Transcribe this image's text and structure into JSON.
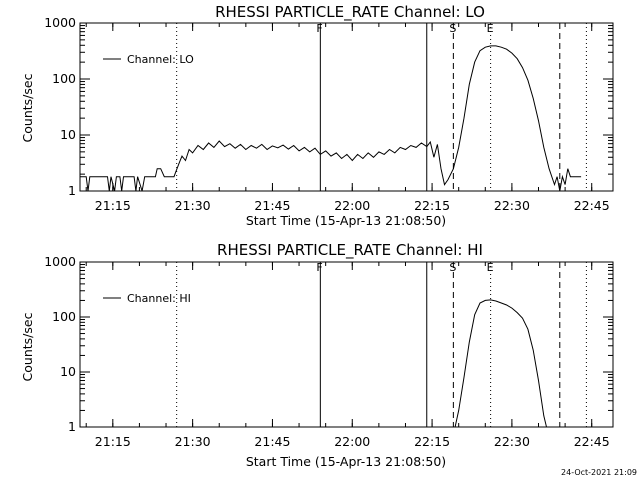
{
  "footer_timestamp": "24-Oct-2021 21:09",
  "chart_data": [
    {
      "type": "line",
      "title": "RHESSI PARTICLE_RATE Channel: LO",
      "xlabel": "Start Time (15-Apr-13 21:08:50)",
      "ylabel": "Counts/sec",
      "y_scale": "log",
      "ylim": [
        1,
        1000
      ],
      "xlim": [
        "21:08:50",
        "22:49:00"
      ],
      "x_ticks": [
        "21:15",
        "21:30",
        "21:45",
        "22:00",
        "22:15",
        "22:30",
        "22:45"
      ],
      "y_ticks": [
        "1",
        "10",
        "100",
        "1000"
      ],
      "grid": false,
      "legend": {
        "position": "top-left",
        "entries": [
          "Channel: LO"
        ]
      },
      "markers": [
        {
          "time": "21:27",
          "style": "dotted",
          "label": ""
        },
        {
          "time": "21:54",
          "style": "solid",
          "label": "F"
        },
        {
          "time": "22:14",
          "style": "solid",
          "label": ""
        },
        {
          "time": "22:19",
          "style": "dashed",
          "label": "S"
        },
        {
          "time": "22:26",
          "style": "dotted",
          "label": "E"
        },
        {
          "time": "22:39",
          "style": "dashed",
          "label": ""
        },
        {
          "time": "22:44",
          "style": "dotted",
          "label": ""
        }
      ],
      "series": [
        {
          "name": "Channel: LO",
          "points": [
            [
              "21:08:50",
              1.8
            ],
            [
              "21:10",
              1.8
            ],
            [
              "21:10:20",
              0.9
            ],
            [
              "21:10:40",
              1.8
            ],
            [
              "21:14",
              1.8
            ],
            [
              "21:14:20",
              0.9
            ],
            [
              "21:14:40",
              1.8
            ],
            [
              "21:15:20",
              0.9
            ],
            [
              "21:15:40",
              1.8
            ],
            [
              "21:16:20",
              1.8
            ],
            [
              "21:16:40",
              0.9
            ],
            [
              "21:17",
              1.8
            ],
            [
              "21:19",
              1.8
            ],
            [
              "21:19:20",
              0.9
            ],
            [
              "21:19:40",
              1.8
            ],
            [
              "21:20:30",
              0.9
            ],
            [
              "21:21",
              1.8
            ],
            [
              "21:23",
              1.8
            ],
            [
              "21:23:20",
              2.5
            ],
            [
              "21:24",
              2.5
            ],
            [
              "21:24:40",
              1.8
            ],
            [
              "21:26:30",
              1.8
            ],
            [
              "21:26:50",
              2.2
            ],
            [
              "21:27:30",
              3.2
            ],
            [
              "21:28",
              4.2
            ],
            [
              "21:28:40",
              3.5
            ],
            [
              "21:29:20",
              5.5
            ],
            [
              "21:30",
              4.8
            ],
            [
              "21:31",
              6.5
            ],
            [
              "21:32",
              5.5
            ],
            [
              "21:33",
              7.2
            ],
            [
              "21:34",
              6.0
            ],
            [
              "21:35",
              7.8
            ],
            [
              "21:36",
              6.2
            ],
            [
              "21:37",
              7.0
            ],
            [
              "21:38",
              5.8
            ],
            [
              "21:39",
              6.8
            ],
            [
              "21:40",
              5.5
            ],
            [
              "21:41",
              6.5
            ],
            [
              "21:42",
              5.8
            ],
            [
              "21:43",
              6.8
            ],
            [
              "21:44",
              5.5
            ],
            [
              "21:45",
              6.4
            ],
            [
              "21:46",
              5.9
            ],
            [
              "21:47",
              6.6
            ],
            [
              "21:48",
              5.6
            ],
            [
              "21:49",
              6.5
            ],
            [
              "21:50",
              5.2
            ],
            [
              "21:51",
              6.0
            ],
            [
              "21:52",
              5.0
            ],
            [
              "21:53",
              5.8
            ],
            [
              "21:54",
              4.5
            ],
            [
              "21:55",
              5.2
            ],
            [
              "21:56",
              4.2
            ],
            [
              "21:57",
              4.8
            ],
            [
              "21:58",
              3.8
            ],
            [
              "21:59",
              4.5
            ],
            [
              "22:00",
              3.5
            ],
            [
              "22:01",
              4.5
            ],
            [
              "22:02",
              3.8
            ],
            [
              "22:03",
              4.8
            ],
            [
              "22:04",
              4.0
            ],
            [
              "22:05",
              5.0
            ],
            [
              "22:06",
              4.5
            ],
            [
              "22:07",
              5.5
            ],
            [
              "22:08",
              4.8
            ],
            [
              "22:09",
              6.0
            ],
            [
              "22:10",
              5.5
            ],
            [
              "22:11",
              6.5
            ],
            [
              "22:12",
              6.0
            ],
            [
              "22:13",
              7.2
            ],
            [
              "22:14",
              6.2
            ],
            [
              "22:14:40",
              7.5
            ],
            [
              "22:15:20",
              4.0
            ],
            [
              "22:16",
              6.8
            ],
            [
              "22:16:40",
              2.5
            ],
            [
              "22:17:20",
              1.3
            ],
            [
              "22:18",
              1.6
            ],
            [
              "22:19",
              2.5
            ],
            [
              "22:20",
              6.0
            ],
            [
              "22:21",
              20
            ],
            [
              "22:22",
              80
            ],
            [
              "22:23",
              200
            ],
            [
              "22:24",
              320
            ],
            [
              "22:25",
              370
            ],
            [
              "22:26",
              390
            ],
            [
              "22:27",
              390
            ],
            [
              "22:28",
              370
            ],
            [
              "22:29",
              340
            ],
            [
              "22:30",
              290
            ],
            [
              "22:31",
              230
            ],
            [
              "22:32",
              160
            ],
            [
              "22:33",
              95
            ],
            [
              "22:34",
              45
            ],
            [
              "22:35",
              18
            ],
            [
              "22:36",
              6
            ],
            [
              "22:37",
              2.5
            ],
            [
              "22:38",
              1.3
            ],
            [
              "22:38:30",
              1.8
            ],
            [
              "22:39",
              0.9
            ],
            [
              "22:39:30",
              1.8
            ],
            [
              "22:40",
              1.3
            ],
            [
              "22:40:30",
              2.5
            ],
            [
              "22:41",
              1.8
            ],
            [
              "22:43",
              1.8
            ]
          ]
        }
      ]
    },
    {
      "type": "line",
      "title": "RHESSI PARTICLE_RATE Channel: HI",
      "xlabel": "Start Time (15-Apr-13 21:08:50)",
      "ylabel": "Counts/sec",
      "y_scale": "log",
      "ylim": [
        1,
        1000
      ],
      "xlim": [
        "21:08:50",
        "22:49:00"
      ],
      "x_ticks": [
        "21:15",
        "21:30",
        "21:45",
        "22:00",
        "22:15",
        "22:30",
        "22:45"
      ],
      "y_ticks": [
        "1",
        "10",
        "100",
        "1000"
      ],
      "grid": false,
      "legend": {
        "position": "top-left",
        "entries": [
          "Channel: HI"
        ]
      },
      "markers": [
        {
          "time": "21:27",
          "style": "dotted",
          "label": ""
        },
        {
          "time": "21:54",
          "style": "solid",
          "label": "F"
        },
        {
          "time": "22:14",
          "style": "solid",
          "label": ""
        },
        {
          "time": "22:19",
          "style": "dashed",
          "label": "S"
        },
        {
          "time": "22:26",
          "style": "dotted",
          "label": "E"
        },
        {
          "time": "22:39",
          "style": "dashed",
          "label": ""
        },
        {
          "time": "22:44",
          "style": "dotted",
          "label": ""
        }
      ],
      "series": [
        {
          "name": "Channel: HI",
          "points": [
            [
              "22:19:20",
              0.9
            ],
            [
              "22:20",
              2
            ],
            [
              "22:21",
              8
            ],
            [
              "22:22",
              35
            ],
            [
              "22:23",
              110
            ],
            [
              "22:24",
              180
            ],
            [
              "22:25",
              200
            ],
            [
              "22:26",
              205
            ],
            [
              "22:27",
              195
            ],
            [
              "22:28",
              180
            ],
            [
              "22:29",
              165
            ],
            [
              "22:30",
              145
            ],
            [
              "22:31",
              120
            ],
            [
              "22:32",
              95
            ],
            [
              "22:33",
              60
            ],
            [
              "22:34",
              25
            ],
            [
              "22:35",
              7
            ],
            [
              "22:36",
              1.6
            ],
            [
              "22:36:30",
              0.9
            ]
          ]
        }
      ]
    }
  ]
}
